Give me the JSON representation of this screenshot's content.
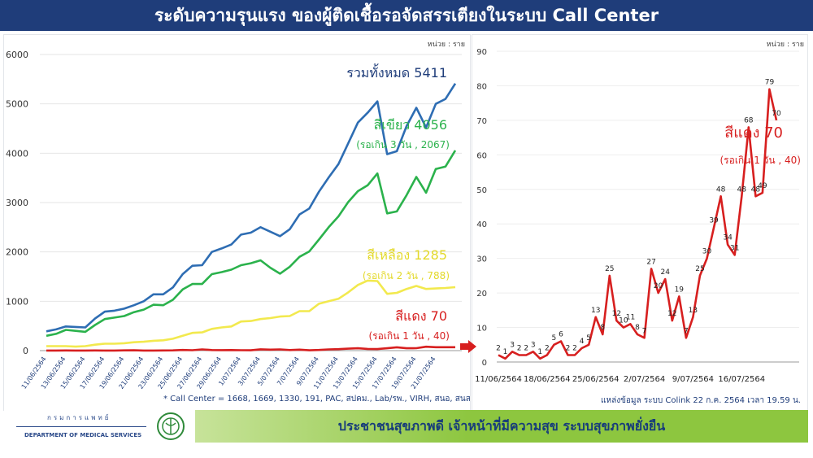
{
  "title": "ระดับความรุนแรง ของผู้ติดเชื้อรอจัดสรรเตียงในระบบ Call Center",
  "colors": {
    "title_bg": "#1f3d7a",
    "total": "#2e6db3",
    "green": "#2bb24c",
    "yellow": "#f2e94e",
    "red": "#d71f1f",
    "green_bar": "#8dc63f"
  },
  "footer": {
    "dept_th": "กรมการแพทย์",
    "dept_en": "DEPARTMENT OF MEDICAL SERVICES",
    "slogan": "ประชาชนสุขภาพดี เจ้าหน้าที่มีความสุข ระบบสุขภาพยั่งยืน"
  },
  "chart_data": [
    {
      "type": "line",
      "unit_label": "หน่วย : ราย",
      "ylim": [
        0,
        6000
      ],
      "yticks": [
        0,
        1000,
        2000,
        3000,
        4000,
        5000,
        6000
      ],
      "x_tick_labels": [
        "11/06/2564",
        "13/06/2564",
        "15/06/2564",
        "17/06/2564",
        "19/06/2564",
        "21/06/2564",
        "23/06/2564",
        "25/06/2564",
        "27/06/2564",
        "29/06/2564",
        "1/07/2564",
        "3/07/2564",
        "5/07/2564",
        "7/07/2564",
        "9/07/2564",
        "11/07/2564",
        "13/07/2564",
        "15/07/2564",
        "17/07/2564",
        "19/07/2564",
        "21/07/2564"
      ],
      "footnote": "* Call Center = 1668, 1669, 1330, 191, PAC, สปคม., Lab/รพ., VIRH, สนอ, สนส",
      "series": [
        {
          "name": "รวมทั้งหมด 5411",
          "color": "#2e6db3",
          "values": [
            390,
            430,
            490,
            480,
            470,
            650,
            790,
            810,
            850,
            920,
            1000,
            1140,
            1140,
            1280,
            1550,
            1720,
            1730,
            2000,
            2070,
            2150,
            2350,
            2390,
            2500,
            2410,
            2320,
            2460,
            2760,
            2880,
            3220,
            3510,
            3780,
            4200,
            4620,
            4820,
            5050,
            3980,
            4040,
            4550,
            4920,
            4520,
            5000,
            5100,
            5411
          ]
        },
        {
          "name": "สีเขียว 4056",
          "sub": "(รอเกิน 3 วัน , 2067)",
          "color": "#2bb24c",
          "values": [
            300,
            340,
            420,
            400,
            380,
            520,
            640,
            670,
            700,
            780,
            830,
            930,
            920,
            1030,
            1240,
            1350,
            1350,
            1550,
            1590,
            1640,
            1730,
            1770,
            1830,
            1680,
            1560,
            1700,
            1900,
            2010,
            2250,
            2500,
            2720,
            3010,
            3230,
            3350,
            3590,
            2780,
            2820,
            3150,
            3520,
            3200,
            3680,
            3730,
            4056
          ]
        },
        {
          "name": "สีเหลือง 1285",
          "sub": "(รอเกิน 2 วัน , 788)",
          "color": "#f2e94e",
          "values": [
            90,
            90,
            90,
            80,
            90,
            120,
            140,
            140,
            150,
            170,
            180,
            200,
            210,
            240,
            300,
            360,
            370,
            440,
            470,
            490,
            590,
            600,
            640,
            660,
            690,
            700,
            800,
            800,
            950,
            1000,
            1050,
            1180,
            1330,
            1420,
            1410,
            1150,
            1170,
            1250,
            1310,
            1250,
            1260,
            1270,
            1285
          ]
        },
        {
          "name": "สีแดง 70",
          "sub": "(รอเกิน 1 วัน , 40)",
          "color": "#d71f1f",
          "values": [
            2,
            1,
            3,
            2,
            2,
            3,
            1,
            2,
            5,
            6,
            2,
            2,
            4,
            5,
            13,
            8,
            25,
            12,
            10,
            11,
            8,
            7,
            27,
            20,
            24,
            12,
            19,
            7,
            13,
            25,
            30,
            39,
            48,
            34,
            31,
            48,
            68,
            48,
            49,
            79,
            70,
            70,
            70
          ]
        }
      ]
    },
    {
      "type": "line",
      "unit_label": "หน่วย : ราย",
      "ylim": [
        0,
        90
      ],
      "yticks": [
        0,
        10,
        20,
        30,
        40,
        50,
        60,
        70,
        80,
        90
      ],
      "x_tick_labels": [
        "11/06/2564",
        "18/06/2564",
        "25/06/2564",
        "2/07/2564",
        "9/07/2564",
        "16/07/2564"
      ],
      "source": "แหล่งข้อมูล ระบบ Colink 22 ก.ค. 2564 เวลา 19.59 น.",
      "series": [
        {
          "name": "สีแดง 70",
          "sub": "(รอเกิน 1 วัน , 40)",
          "color": "#d71f1f",
          "values": [
            2,
            1,
            3,
            2,
            2,
            3,
            1,
            2,
            5,
            6,
            2,
            2,
            4,
            5,
            13,
            8,
            25,
            12,
            10,
            11,
            8,
            7,
            27,
            20,
            24,
            12,
            19,
            7,
            13,
            25,
            30,
            39,
            48,
            34,
            31,
            48,
            68,
            48,
            49,
            79,
            70
          ]
        }
      ]
    }
  ]
}
